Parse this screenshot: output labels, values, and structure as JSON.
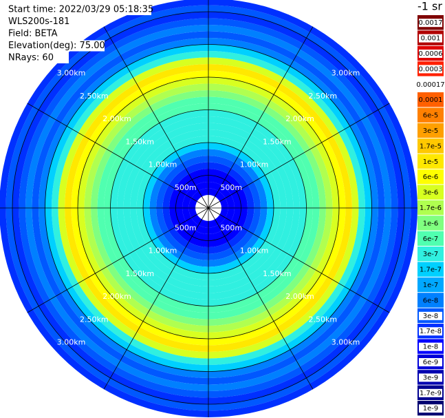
{
  "chart_data": {
    "type": "polar-heatmap",
    "header": [
      "Start time: 2022/03/29 05:18:35",
      "WLS200s-181",
      "Field: BETA",
      "Elevation(deg): 75.00",
      "NRays: 60"
    ],
    "range_bins": [
      0.2,
      0.3,
      0.4,
      0.5,
      0.6,
      0.7,
      0.8,
      0.9,
      1.0,
      1.1,
      1.2,
      1.3,
      1.4,
      1.5,
      1.6,
      1.7,
      1.8,
      1.9,
      2.0,
      2.1,
      2.2,
      2.3,
      2.4,
      2.5,
      2.6,
      2.7,
      2.8,
      2.9,
      3.0,
      3.1,
      3.2
    ],
    "values": [
      1e-08,
      1e-08,
      1e-08,
      1e-08,
      1.7e-08,
      3e-08,
      6e-08,
      1.7e-07,
      3e-07,
      3e-07,
      3e-07,
      3e-07,
      3e-07,
      6e-07,
      6e-07,
      1e-06,
      1.7e-06,
      3e-06,
      6e-06,
      1e-05,
      3e-06,
      3e-07,
      1.7e-07,
      6e-08,
      3e-08,
      6e-08,
      3e-08,
      1.7e-08,
      3e-08,
      1.7e-08
    ],
    "range_rings": [
      {
        "value": 0.5,
        "label": "500m"
      },
      {
        "value": 1.0,
        "label": "1.00km"
      },
      {
        "value": 1.5,
        "label": "1.50km"
      },
      {
        "value": 2.0,
        "label": "2.00km"
      },
      {
        "value": 2.5,
        "label": "2.50km"
      },
      {
        "value": 3.0,
        "label": "3.00km"
      }
    ],
    "colorbar": {
      "title": "-1 sr",
      "levels": [
        {
          "value": 0.0017,
          "label": "0.0017",
          "color": "#800000"
        },
        {
          "value": 0.001,
          "label": "0.001",
          "color": "#b00000"
        },
        {
          "value": 0.0006,
          "label": "0.0006",
          "color": "#e00000"
        },
        {
          "value": 0.0003,
          "label": "0.0003",
          "color": "#ff2000"
        },
        {
          "value": 0.00017,
          "label": "0.00017",
          "color": "#ffffff"
        },
        {
          "value": 0.0001,
          "label": "0.0001",
          "color": "#ff6000"
        },
        {
          "value": 6e-05,
          "label": "6e-5",
          "color": "#ff8000"
        },
        {
          "value": 3e-05,
          "label": "3e-5",
          "color": "#ffa000"
        },
        {
          "value": 1.7e-05,
          "label": "1.7e-5",
          "color": "#ffc800"
        },
        {
          "value": 1e-05,
          "label": "1e-5",
          "color": "#ffe800"
        },
        {
          "value": 6e-06,
          "label": "6e-6",
          "color": "#ffff00"
        },
        {
          "value": 3e-06,
          "label": "3e-6",
          "color": "#d8ff20"
        },
        {
          "value": 1.7e-06,
          "label": "1.7e-6",
          "color": "#b0ff50"
        },
        {
          "value": 1e-06,
          "label": "1e-6",
          "color": "#80ff80"
        },
        {
          "value": 6e-07,
          "label": "6e-7",
          "color": "#50ffb0"
        },
        {
          "value": 3e-07,
          "label": "3e-7",
          "color": "#30f0e0"
        },
        {
          "value": 1.7e-07,
          "label": "1.7e-7",
          "color": "#00d0ff"
        },
        {
          "value": 1e-07,
          "label": "1e-7",
          "color": "#00a8ff"
        },
        {
          "value": 6e-08,
          "label": "6e-8",
          "color": "#0080ff"
        },
        {
          "value": 3e-08,
          "label": "3e-8",
          "color": "#0058ff"
        },
        {
          "value": 1.7e-08,
          "label": "1.7e-8",
          "color": "#0030ff"
        },
        {
          "value": 1e-08,
          "label": "1e-8",
          "color": "#0000ff"
        },
        {
          "value": 6e-09,
          "label": "6e-9",
          "color": "#0000d8"
        },
        {
          "value": 3e-09,
          "label": "3e-9",
          "color": "#0000b0"
        },
        {
          "value": 1.7e-09,
          "label": "1.7e-9",
          "color": "#000090"
        },
        {
          "value": 1e-09,
          "label": "1e-9",
          "color": "#000070"
        }
      ]
    }
  }
}
